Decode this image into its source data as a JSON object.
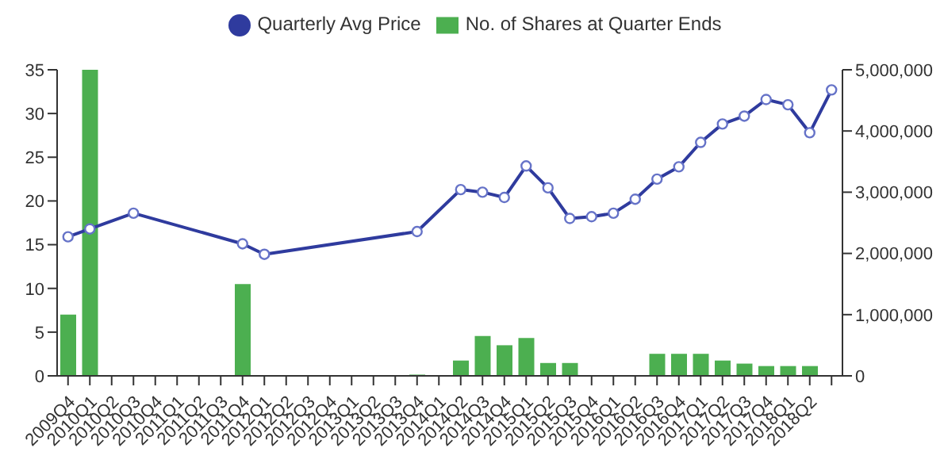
{
  "chart_data": {
    "type": "bar",
    "categories": [
      "2009Q4",
      "2010Q1",
      "2010Q2",
      "2010Q3",
      "2010Q4",
      "2011Q1",
      "2011Q2",
      "2011Q3",
      "2011Q4",
      "2012Q1",
      "2012Q2",
      "2012Q3",
      "2012Q4",
      "2013Q1",
      "2013Q2",
      "2013Q3",
      "2013Q4",
      "2014Q1",
      "2014Q2",
      "2014Q3",
      "2014Q4",
      "2015Q1",
      "2015Q2",
      "2015Q3",
      "2015Q4",
      "2016Q1",
      "2016Q2",
      "2016Q3",
      "2016Q4",
      "2017Q1",
      "2017Q2",
      "2017Q3",
      "2017Q4",
      "2018Q1",
      "2018Q2",
      null
    ],
    "series": [
      {
        "name": "Quarterly Avg Price",
        "type": "line",
        "color": "#2f3b9e",
        "marker": "circle",
        "values": [
          15.9,
          16.8,
          null,
          18.6,
          null,
          null,
          null,
          null,
          15.1,
          13.9,
          null,
          null,
          null,
          null,
          null,
          null,
          16.5,
          null,
          21.3,
          21.0,
          20.4,
          24.0,
          21.5,
          18.0,
          18.2,
          18.6,
          20.2,
          22.5,
          23.9,
          26.7,
          28.8,
          29.7,
          31.6,
          31.0,
          27.8,
          32.7
        ]
      },
      {
        "name": "No. of Shares at Quarter Ends",
        "axis": "y2",
        "color": "#4caf50",
        "values": [
          1000000,
          5000000,
          null,
          null,
          null,
          null,
          null,
          null,
          1500000,
          null,
          null,
          null,
          null,
          null,
          null,
          null,
          20000,
          null,
          250000,
          650000,
          500000,
          620000,
          210000,
          210000,
          10000,
          10000,
          null,
          360000,
          360000,
          360000,
          250000,
          200000,
          160000,
          160000,
          160000,
          null
        ]
      }
    ],
    "ylim": [
      0,
      35
    ],
    "yticks": [
      0,
      5,
      10,
      15,
      20,
      25,
      30,
      35
    ],
    "y2lim": [
      0,
      5000000
    ],
    "y2ticks": [
      {
        "value": 0,
        "label": "0"
      },
      {
        "value": 1000000,
        "label": "1,000,000"
      },
      {
        "value": 2000000,
        "label": "2,000,000"
      },
      {
        "value": 3000000,
        "label": "3,000,000"
      },
      {
        "value": 4000000,
        "label": "4,000,000"
      },
      {
        "value": 5000000,
        "label": "5,000,000"
      }
    ],
    "grid": false,
    "legend": "top"
  }
}
